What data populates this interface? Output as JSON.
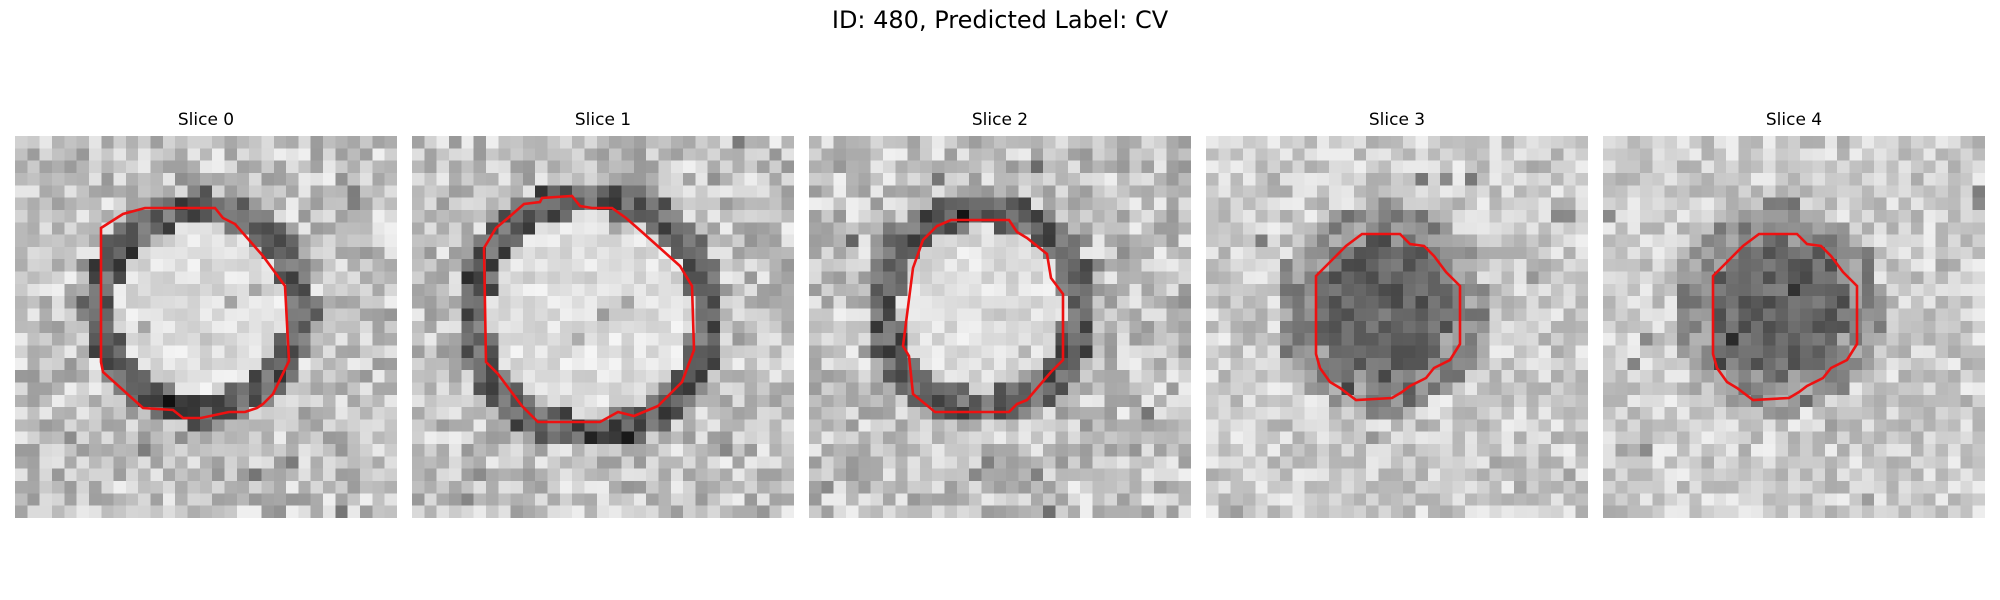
{
  "figure": {
    "title": "ID: 480, Predicted Label: CV"
  },
  "slices": [
    {
      "label": "Slice 0",
      "vesicle_style": "light-with-dark-rim",
      "blob_type": "light"
    },
    {
      "label": "Slice 1",
      "vesicle_style": "light-with-dark-rim",
      "blob_type": "light"
    },
    {
      "label": "Slice 2",
      "vesicle_style": "light-with-dark-rim",
      "blob_type": "light"
    },
    {
      "label": "Slice 3",
      "vesicle_style": "dark-core",
      "blob_type": "dark"
    },
    {
      "label": "Slice 4",
      "vesicle_style": "dark-core",
      "blob_type": "dark"
    }
  ],
  "colors": {
    "contour": "#ee1111",
    "background": "#ffffff",
    "colormap": "grayscale"
  }
}
